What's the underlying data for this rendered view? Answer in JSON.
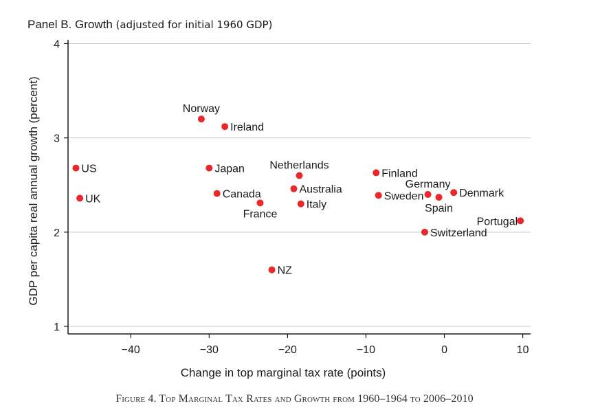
{
  "panel": {
    "title_main": "Panel B. Growth",
    "title_paren": "(adjusted for initial 1960 GDP)"
  },
  "caption": "Figure 4. Top Marginal Tax Rates and Growth from 1960–1964 to 2006–2010",
  "colors": {
    "point": "#e8282b",
    "axis": "#1a1a1a",
    "grid": "#c8c8c8"
  },
  "chart_data": {
    "type": "scatter",
    "title": "Panel B. Growth (adjusted for initial 1960 GDP)",
    "xlabel": "Change in top marginal tax rate (points)",
    "ylabel": "GDP per capita real annual growth (percent)",
    "xlim": [
      -48,
      11
    ],
    "ylim": [
      0.92,
      4.04
    ],
    "xticks": [
      -40,
      -30,
      -20,
      -10,
      0,
      10
    ],
    "xtick_labels": [
      "−40",
      "−30",
      "−20",
      "−10",
      "0",
      "10"
    ],
    "yticks": [
      1,
      2,
      3,
      4
    ],
    "ytick_labels": [
      "1",
      "2",
      "3",
      "4"
    ],
    "grid": "horizontal",
    "points": [
      {
        "label": "US",
        "x": -47.0,
        "y": 2.68,
        "label_pos": "right"
      },
      {
        "label": "UK",
        "x": -46.5,
        "y": 2.36,
        "label_pos": "right"
      },
      {
        "label": "Norway",
        "x": -31.0,
        "y": 3.2,
        "label_pos": "above"
      },
      {
        "label": "Ireland",
        "x": -28.0,
        "y": 3.12,
        "label_pos": "right"
      },
      {
        "label": "Japan",
        "x": -30.0,
        "y": 2.68,
        "label_pos": "right"
      },
      {
        "label": "Canada",
        "x": -29.0,
        "y": 2.41,
        "label_pos": "right"
      },
      {
        "label": "France",
        "x": -23.5,
        "y": 2.31,
        "label_pos": "below"
      },
      {
        "label": "NZ",
        "x": -22.0,
        "y": 1.6,
        "label_pos": "right"
      },
      {
        "label": "Netherlands",
        "x": -18.5,
        "y": 2.6,
        "label_pos": "above"
      },
      {
        "label": "Australia",
        "x": -19.2,
        "y": 2.46,
        "label_pos": "right"
      },
      {
        "label": "Italy",
        "x": -18.3,
        "y": 2.3,
        "label_pos": "right"
      },
      {
        "label": "Finland",
        "x": -8.7,
        "y": 2.63,
        "label_pos": "right"
      },
      {
        "label": "Sweden",
        "x": -8.4,
        "y": 2.39,
        "label_pos": "right"
      },
      {
        "label": "Germany",
        "x": -2.1,
        "y": 2.4,
        "label_pos": "above"
      },
      {
        "label": "Spain",
        "x": -0.7,
        "y": 2.37,
        "label_pos": "below"
      },
      {
        "label": "Denmark",
        "x": 1.2,
        "y": 2.42,
        "label_pos": "right"
      },
      {
        "label": "Switzerland",
        "x": -2.5,
        "y": 2.0,
        "label_pos": "right"
      },
      {
        "label": "Portugal",
        "x": 9.7,
        "y": 2.12,
        "label_pos": "left"
      }
    ]
  }
}
